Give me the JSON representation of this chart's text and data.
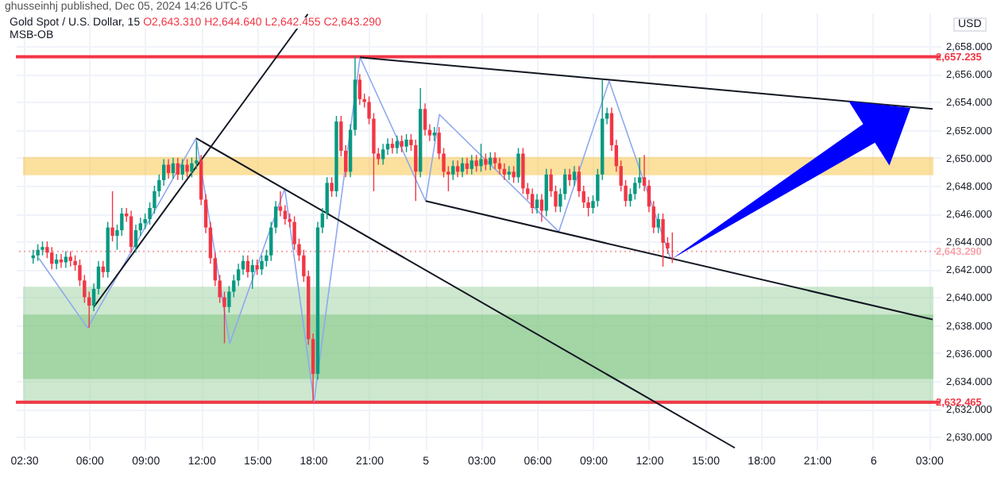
{
  "chart_data": {
    "type": "candlestick",
    "title": "Gold Spot / U.S. Dollar, 15",
    "subtitle": "O2,643.310 H2,644.640 L2,642.455 C2,643.290",
    "ylabel": "USD",
    "annotations": [
      "ghusseinhj published, Dec 05, 2024 14:26 UTC-5",
      "MSB-OB"
    ],
    "x": [
      "2024-12-04T03:00",
      "2024-12-04T03:15",
      "2024-12-04T03:30",
      "2024-12-04T03:45",
      "2024-12-04T04:00",
      "2024-12-04T04:15",
      "2024-12-04T04:30",
      "2024-12-04T04:45",
      "2024-12-04T05:00",
      "2024-12-04T05:15",
      "2024-12-04T05:30",
      "2024-12-04T05:45",
      "2024-12-04T06:00",
      "2024-12-04T06:15",
      "2024-12-04T06:30",
      "2024-12-04T06:45",
      "2024-12-04T07:00",
      "2024-12-04T07:15",
      "2024-12-04T07:30",
      "2024-12-04T07:45",
      "2024-12-04T08:00",
      "2024-12-04T08:15",
      "2024-12-04T08:30",
      "2024-12-04T08:45",
      "2024-12-04T09:00",
      "2024-12-04T09:15",
      "2024-12-04T09:30",
      "2024-12-04T09:45",
      "2024-12-04T10:00",
      "2024-12-04T10:15",
      "2024-12-04T10:30",
      "2024-12-04T10:45",
      "2024-12-04T11:00",
      "2024-12-04T11:15",
      "2024-12-04T11:30",
      "2024-12-04T11:45",
      "2024-12-04T12:00",
      "2024-12-04T12:15",
      "2024-12-04T12:30",
      "2024-12-04T12:45",
      "2024-12-04T13:00",
      "2024-12-04T13:15",
      "2024-12-04T13:30",
      "2024-12-04T13:45",
      "2024-12-04T14:00",
      "2024-12-04T14:15",
      "2024-12-04T14:30",
      "2024-12-04T14:45",
      "2024-12-04T15:00",
      "2024-12-04T15:15",
      "2024-12-04T15:30",
      "2024-12-04T15:45",
      "2024-12-04T16:00",
      "2024-12-04T16:15",
      "2024-12-04T16:30",
      "2024-12-04T16:45",
      "2024-12-04T17:00",
      "2024-12-04T17:15",
      "2024-12-04T17:30",
      "2024-12-04T17:45",
      "2024-12-04T18:00",
      "2024-12-04T18:15",
      "2024-12-04T18:30",
      "2024-12-04T18:45",
      "2024-12-04T19:00",
      "2024-12-04T19:15",
      "2024-12-04T19:30",
      "2024-12-04T19:45",
      "2024-12-04T20:00",
      "2024-12-04T20:15",
      "2024-12-04T20:30",
      "2024-12-04T20:45",
      "2024-12-04T21:00",
      "2024-12-04T21:15",
      "2024-12-04T21:30",
      "2024-12-04T21:45",
      "2024-12-04T22:00",
      "2024-12-04T22:15",
      "2024-12-04T22:30",
      "2024-12-04T22:45",
      "2024-12-04T23:00",
      "2024-12-04T23:15",
      "2024-12-04T23:30",
      "2024-12-04T23:45",
      "2024-12-05T00:00",
      "2024-12-05T00:15",
      "2024-12-05T00:30",
      "2024-12-05T00:45",
      "2024-12-05T01:00",
      "2024-12-05T01:15",
      "2024-12-05T01:30",
      "2024-12-05T01:45",
      "2024-12-05T02:00",
      "2024-12-05T02:15",
      "2024-12-05T02:30",
      "2024-12-05T02:45",
      "2024-12-05T03:00",
      "2024-12-05T03:15",
      "2024-12-05T03:30",
      "2024-12-05T03:45",
      "2024-12-05T04:00",
      "2024-12-05T04:15",
      "2024-12-05T04:30",
      "2024-12-05T04:45",
      "2024-12-05T05:00",
      "2024-12-05T05:15",
      "2024-12-05T05:30",
      "2024-12-05T05:45",
      "2024-12-05T06:00",
      "2024-12-05T06:15",
      "2024-12-05T06:30",
      "2024-12-05T06:45",
      "2024-12-05T07:00",
      "2024-12-05T07:15",
      "2024-12-05T07:30",
      "2024-12-05T07:45",
      "2024-12-05T08:00",
      "2024-12-05T08:15",
      "2024-12-05T08:30",
      "2024-12-05T08:45",
      "2024-12-05T09:00",
      "2024-12-05T09:15",
      "2024-12-05T09:30",
      "2024-12-05T09:45",
      "2024-12-05T10:00",
      "2024-12-05T10:15",
      "2024-12-05T10:30",
      "2024-12-05T10:45",
      "2024-12-05T11:00",
      "2024-12-05T11:15",
      "2024-12-05T11:30",
      "2024-12-05T11:45",
      "2024-12-05T12:00",
      "2024-12-05T12:15",
      "2024-12-05T12:30",
      "2024-12-05T12:45",
      "2024-12-05T13:00",
      "2024-12-05T13:15"
    ],
    "ohlc": [
      [
        2642.8,
        2643.4,
        2642.4,
        2643.0
      ],
      [
        2643.0,
        2643.8,
        2642.6,
        2643.4
      ],
      [
        2643.4,
        2644.0,
        2643.0,
        2643.6
      ],
      [
        2643.6,
        2644.0,
        2642.8,
        2643.2
      ],
      [
        2643.2,
        2643.6,
        2642.0,
        2642.4
      ],
      [
        2642.4,
        2643.1,
        2642.0,
        2642.7
      ],
      [
        2642.7,
        2643.1,
        2642.1,
        2642.5
      ],
      [
        2642.5,
        2643.3,
        2642.1,
        2642.9
      ],
      [
        2642.9,
        2643.3,
        2642.2,
        2642.6
      ],
      [
        2642.6,
        2643.0,
        2641.9,
        2642.3
      ],
      [
        2642.3,
        2642.7,
        2640.8,
        2641.2
      ],
      [
        2641.2,
        2641.6,
        2639.6,
        2640.0
      ],
      [
        2640.0,
        2640.4,
        2637.8,
        2639.4
      ],
      [
        2639.4,
        2641.0,
        2639.0,
        2640.6
      ],
      [
        2640.6,
        2642.6,
        2640.2,
        2642.2
      ],
      [
        2642.2,
        2642.6,
        2641.4,
        2641.8
      ],
      [
        2641.8,
        2645.4,
        2641.4,
        2645.0
      ],
      [
        2645.0,
        2647.6,
        2644.0,
        2644.4
      ],
      [
        2644.4,
        2645.2,
        2643.4,
        2644.8
      ],
      [
        2644.8,
        2646.4,
        2644.4,
        2646.0
      ],
      [
        2646.0,
        2646.4,
        2645.4,
        2645.8
      ],
      [
        2645.8,
        2646.2,
        2643.2,
        2643.6
      ],
      [
        2643.6,
        2645.2,
        2643.2,
        2644.8
      ],
      [
        2644.8,
        2645.7,
        2644.4,
        2645.3
      ],
      [
        2645.3,
        2646.0,
        2644.9,
        2645.6
      ],
      [
        2645.6,
        2646.8,
        2645.2,
        2646.4
      ],
      [
        2646.4,
        2648.0,
        2646.0,
        2647.6
      ],
      [
        2647.6,
        2648.8,
        2647.2,
        2648.4
      ],
      [
        2648.4,
        2649.9,
        2648.0,
        2649.5
      ],
      [
        2649.5,
        2649.9,
        2648.5,
        2648.9
      ],
      [
        2648.9,
        2650.0,
        2648.5,
        2649.6
      ],
      [
        2649.6,
        2650.0,
        2648.4,
        2648.8
      ],
      [
        2648.8,
        2649.9,
        2648.4,
        2649.5
      ],
      [
        2649.5,
        2649.9,
        2648.6,
        2649.0
      ],
      [
        2649.0,
        2650.0,
        2648.6,
        2649.6
      ],
      [
        2649.6,
        2651.2,
        2649.2,
        2649.8
      ],
      [
        2649.8,
        2650.2,
        2646.6,
        2647.0
      ],
      [
        2647.0,
        2647.4,
        2644.6,
        2645.0
      ],
      [
        2645.0,
        2645.4,
        2642.4,
        2642.8
      ],
      [
        2642.8,
        2643.2,
        2640.8,
        2641.2
      ],
      [
        2641.2,
        2641.6,
        2639.6,
        2640.0
      ],
      [
        2640.0,
        2640.4,
        2636.7,
        2639.3
      ],
      [
        2639.3,
        2640.8,
        2638.9,
        2640.4
      ],
      [
        2640.4,
        2641.6,
        2640.0,
        2641.2
      ],
      [
        2641.2,
        2642.4,
        2640.8,
        2642.0
      ],
      [
        2642.0,
        2643.0,
        2641.6,
        2642.6
      ],
      [
        2642.6,
        2643.0,
        2641.4,
        2641.8
      ],
      [
        2641.8,
        2642.7,
        2640.6,
        2642.3
      ],
      [
        2642.3,
        2642.7,
        2641.6,
        2642.0
      ],
      [
        2642.0,
        2643.0,
        2641.6,
        2642.6
      ],
      [
        2642.6,
        2643.4,
        2642.2,
        2643.0
      ],
      [
        2643.0,
        2645.4,
        2642.6,
        2645.0
      ],
      [
        2645.0,
        2646.9,
        2644.6,
        2646.5
      ],
      [
        2646.5,
        2647.6,
        2645.8,
        2646.2
      ],
      [
        2646.2,
        2646.6,
        2645.2,
        2645.6
      ],
      [
        2645.6,
        2646.0,
        2645.0,
        2645.4
      ],
      [
        2645.4,
        2645.8,
        2643.4,
        2643.8
      ],
      [
        2643.8,
        2644.2,
        2642.6,
        2643.0
      ],
      [
        2643.0,
        2643.4,
        2641.1,
        2641.5
      ],
      [
        2641.5,
        2641.9,
        2636.6,
        2637.0
      ],
      [
        2637.0,
        2637.4,
        2632.465,
        2634.5
      ],
      [
        2634.5,
        2645.4,
        2634.1,
        2645.0
      ],
      [
        2645.0,
        2646.4,
        2644.6,
        2646.0
      ],
      [
        2646.0,
        2648.6,
        2645.6,
        2648.2
      ],
      [
        2648.2,
        2648.6,
        2647.2,
        2647.6
      ],
      [
        2647.6,
        2653.0,
        2647.2,
        2652.6
      ],
      [
        2652.6,
        2653.0,
        2650.1,
        2650.5
      ],
      [
        2650.5,
        2650.9,
        2648.6,
        2649.0
      ],
      [
        2649.0,
        2652.4,
        2648.6,
        2652.0
      ],
      [
        2652.0,
        2657.235,
        2651.6,
        2655.6
      ],
      [
        2655.6,
        2656.0,
        2653.8,
        2654.2
      ],
      [
        2654.2,
        2654.6,
        2653.6,
        2654.0
      ],
      [
        2654.0,
        2654.4,
        2652.4,
        2652.8
      ],
      [
        2652.8,
        2653.2,
        2647.6,
        2650.3
      ],
      [
        2650.3,
        2650.7,
        2649.5,
        2649.9
      ],
      [
        2649.9,
        2651.0,
        2649.5,
        2650.6
      ],
      [
        2650.6,
        2651.4,
        2650.2,
        2651.0
      ],
      [
        2651.0,
        2651.4,
        2650.3,
        2650.7
      ],
      [
        2650.7,
        2651.6,
        2650.3,
        2651.2
      ],
      [
        2651.2,
        2651.6,
        2650.4,
        2650.8
      ],
      [
        2650.8,
        2651.7,
        2650.4,
        2651.3
      ],
      [
        2651.3,
        2651.7,
        2650.5,
        2650.9
      ],
      [
        2650.9,
        2651.3,
        2646.9,
        2649.0
      ],
      [
        2649.0,
        2655.0,
        2648.6,
        2653.5
      ],
      [
        2653.5,
        2653.9,
        2651.6,
        2652.0
      ],
      [
        2652.0,
        2652.4,
        2651.2,
        2651.6
      ],
      [
        2651.6,
        2652.2,
        2651.2,
        2651.8
      ],
      [
        2651.8,
        2652.2,
        2649.9,
        2650.3
      ],
      [
        2650.3,
        2650.7,
        2648.6,
        2649.0
      ],
      [
        2649.0,
        2649.4,
        2647.6,
        2648.8
      ],
      [
        2648.8,
        2649.8,
        2648.4,
        2649.4
      ],
      [
        2649.4,
        2649.8,
        2648.6,
        2649.0
      ],
      [
        2649.0,
        2650.0,
        2648.6,
        2649.6
      ],
      [
        2649.6,
        2650.0,
        2648.8,
        2649.2
      ],
      [
        2649.2,
        2650.2,
        2648.8,
        2649.8
      ],
      [
        2649.8,
        2650.2,
        2649.0,
        2649.4
      ],
      [
        2649.4,
        2651.0,
        2649.0,
        2649.9
      ],
      [
        2649.9,
        2650.3,
        2649.1,
        2649.5
      ],
      [
        2649.5,
        2650.4,
        2649.1,
        2650.0
      ],
      [
        2650.0,
        2650.4,
        2649.2,
        2649.6
      ],
      [
        2649.6,
        2650.0,
        2648.8,
        2649.2
      ],
      [
        2649.2,
        2649.6,
        2648.4,
        2648.8
      ],
      [
        2648.8,
        2649.4,
        2648.4,
        2649.0
      ],
      [
        2649.0,
        2649.4,
        2648.2,
        2648.6
      ],
      [
        2648.6,
        2650.7,
        2648.2,
        2650.3
      ],
      [
        2650.3,
        2650.7,
        2647.4,
        2647.8
      ],
      [
        2647.8,
        2648.2,
        2647.0,
        2647.4
      ],
      [
        2647.4,
        2647.8,
        2646.0,
        2646.4
      ],
      [
        2646.4,
        2647.4,
        2646.0,
        2647.0
      ],
      [
        2647.0,
        2647.4,
        2645.4,
        2646.2
      ],
      [
        2646.2,
        2649.2,
        2645.8,
        2648.8
      ],
      [
        2648.8,
        2649.2,
        2647.2,
        2647.6
      ],
      [
        2647.6,
        2648.0,
        2646.1,
        2646.5
      ],
      [
        2646.5,
        2647.8,
        2646.1,
        2647.4
      ],
      [
        2647.4,
        2649.2,
        2647.0,
        2648.8
      ],
      [
        2648.8,
        2649.2,
        2648.0,
        2648.4
      ],
      [
        2648.4,
        2649.4,
        2648.0,
        2649.0
      ],
      [
        2649.0,
        2649.4,
        2647.2,
        2647.6
      ],
      [
        2647.6,
        2648.0,
        2646.4,
        2646.8
      ],
      [
        2646.8,
        2647.2,
        2645.8,
        2646.4
      ],
      [
        2646.4,
        2647.3,
        2646.0,
        2646.9
      ],
      [
        2646.9,
        2649.2,
        2646.5,
        2648.8
      ],
      [
        2648.8,
        2655.6,
        2648.4,
        2652.8
      ],
      [
        2652.8,
        2653.6,
        2652.4,
        2653.2
      ],
      [
        2653.2,
        2653.6,
        2650.5,
        2650.9
      ],
      [
        2650.9,
        2651.3,
        2649.0,
        2649.4
      ],
      [
        2649.4,
        2649.8,
        2647.6,
        2648.0
      ],
      [
        2648.0,
        2648.4,
        2646.5,
        2646.9
      ],
      [
        2646.9,
        2647.8,
        2646.5,
        2647.4
      ],
      [
        2647.4,
        2648.6,
        2647.0,
        2648.2
      ],
      [
        2648.2,
        2650.0,
        2647.8,
        2648.6
      ],
      [
        2648.6,
        2650.2,
        2647.6,
        2648.0
      ],
      [
        2648.0,
        2648.4,
        2646.1,
        2646.5
      ],
      [
        2646.5,
        2646.9,
        2644.6,
        2645.0
      ],
      [
        2645.0,
        2646.0,
        2644.6,
        2645.6
      ],
      [
        2645.6,
        2646.0,
        2642.2,
        2643.9
      ],
      [
        2643.9,
        2644.3,
        2643.1,
        2643.5
      ],
      [
        2643.31,
        2644.64,
        2642.455,
        2643.29
      ]
    ],
    "series": [
      {
        "type": "line",
        "color": "#8fa8f0",
        "x": [
          "2024-12-04T03:18",
          "2024-12-04T05:55",
          "2024-12-04T11:44",
          "2024-12-04T13:32",
          "2024-12-04T16:29",
          "2024-12-04T18:03",
          "2024-12-04T20:31",
          "2024-12-05T00:02",
          "2024-12-05T00:46",
          "2024-12-05T07:10",
          "2024-12-05T09:52",
          "2024-12-05T13:09"
        ],
        "values": [
          2642.8,
          2637.8,
          2651.4,
          2636.7,
          2647.8,
          2632.5,
          2657.2,
          2646.9,
          2653.1,
          2644.7,
          2655.5,
          2642.8
        ]
      },
      {
        "type": "line",
        "color": "#131722",
        "x": [
          "2024-12-04T06:15",
          "2024-12-04T17:43"
        ],
        "values": [
          2639.3,
          2660.3
        ]
      },
      {
        "type": "line",
        "color": "#131722",
        "x": [
          "2024-12-04T11:44",
          "2024-12-05T16:36"
        ],
        "values": [
          2651.4,
          2629.2
        ]
      },
      {
        "type": "line",
        "color": "#131722",
        "x": [
          "2024-12-04T20:30",
          "2024-12-06T03:12"
        ],
        "values": [
          2657.2,
          2653.5
        ]
      },
      {
        "type": "line",
        "color": "#131722",
        "x": [
          "2024-12-05T00:02",
          "2024-12-06T03:12"
        ],
        "values": [
          2646.9,
          2638.4
        ]
      }
    ],
    "bands": [
      {
        "axis": "y",
        "from": 2632.4,
        "to": 2640.7,
        "color": "#a5d6a7"
      },
      {
        "axis": "y",
        "from": 2634.2,
        "to": 2638.7,
        "color": "#81c784"
      },
      {
        "axis": "y",
        "from": 2648.8,
        "to": 2650.0,
        "color": "#f9c74f"
      }
    ],
    "ref_lines": [
      {
        "axis": "y",
        "value": 2657.235,
        "label": "2,657.235",
        "color": "#f23645",
        "line_style": "solid"
      },
      {
        "axis": "y",
        "value": 2632.465,
        "label": "2,632.465",
        "color": "#f23645",
        "line_style": "solid"
      },
      {
        "axis": "y",
        "value": 2643.29,
        "label": "2,643.290",
        "color": "#f7a5ad",
        "line_style": "dotted"
      }
    ],
    "xlim": [
      "2024-12-04T02:30",
      "2024-12-06T03:12"
    ],
    "xticks": [
      {
        "value": "2024-12-04T02:30",
        "label": "02:30"
      },
      {
        "value": "2024-12-04T06:00",
        "label": "06:00"
      },
      {
        "value": "2024-12-04T09:00",
        "label": "09:00"
      },
      {
        "value": "2024-12-04T12:00",
        "label": "12:00"
      },
      {
        "value": "2024-12-04T15:00",
        "label": "15:00"
      },
      {
        "value": "2024-12-04T18:00",
        "label": "18:00"
      },
      {
        "value": "2024-12-04T21:00",
        "label": "21:00"
      },
      {
        "value": "2024-12-05T00:00",
        "label": "5"
      },
      {
        "value": "2024-12-05T03:00",
        "label": "03:00"
      },
      {
        "value": "2024-12-05T06:00",
        "label": "06:00"
      },
      {
        "value": "2024-12-05T09:00",
        "label": "09:00"
      },
      {
        "value": "2024-12-05T12:00",
        "label": "12:00"
      },
      {
        "value": "2024-12-05T15:00",
        "label": "15:00"
      },
      {
        "value": "2024-12-05T18:00",
        "label": "18:00"
      },
      {
        "value": "2024-12-05T21:00",
        "label": "21:00"
      },
      {
        "value": "2024-12-06T00:00",
        "label": "6"
      },
      {
        "value": "2024-12-06T03:00",
        "label": "03:00"
      }
    ],
    "ylim": [
      2629.1,
      2660.4
    ],
    "yticks": [
      {
        "value": 2630,
        "label": "2,630.000"
      },
      {
        "value": 2632,
        "label": "2,632.000"
      },
      {
        "value": 2634,
        "label": "2,634.000"
      },
      {
        "value": 2636,
        "label": "2,636.000"
      },
      {
        "value": 2638,
        "label": "2,638.000"
      },
      {
        "value": 2640,
        "label": "2,640.000"
      },
      {
        "value": 2642,
        "label": "2,642.000"
      },
      {
        "value": 2644,
        "label": "2,644.000"
      },
      {
        "value": 2646,
        "label": "2,646.000"
      },
      {
        "value": 2648,
        "label": "2,648.000"
      },
      {
        "value": 2650,
        "label": "2,650.000"
      },
      {
        "value": 2652,
        "label": "2,652.000"
      },
      {
        "value": 2654,
        "label": "2,654.000"
      },
      {
        "value": 2656,
        "label": "2,656.000"
      },
      {
        "value": 2658,
        "label": "2,658.000"
      }
    ],
    "grid": true
  }
}
